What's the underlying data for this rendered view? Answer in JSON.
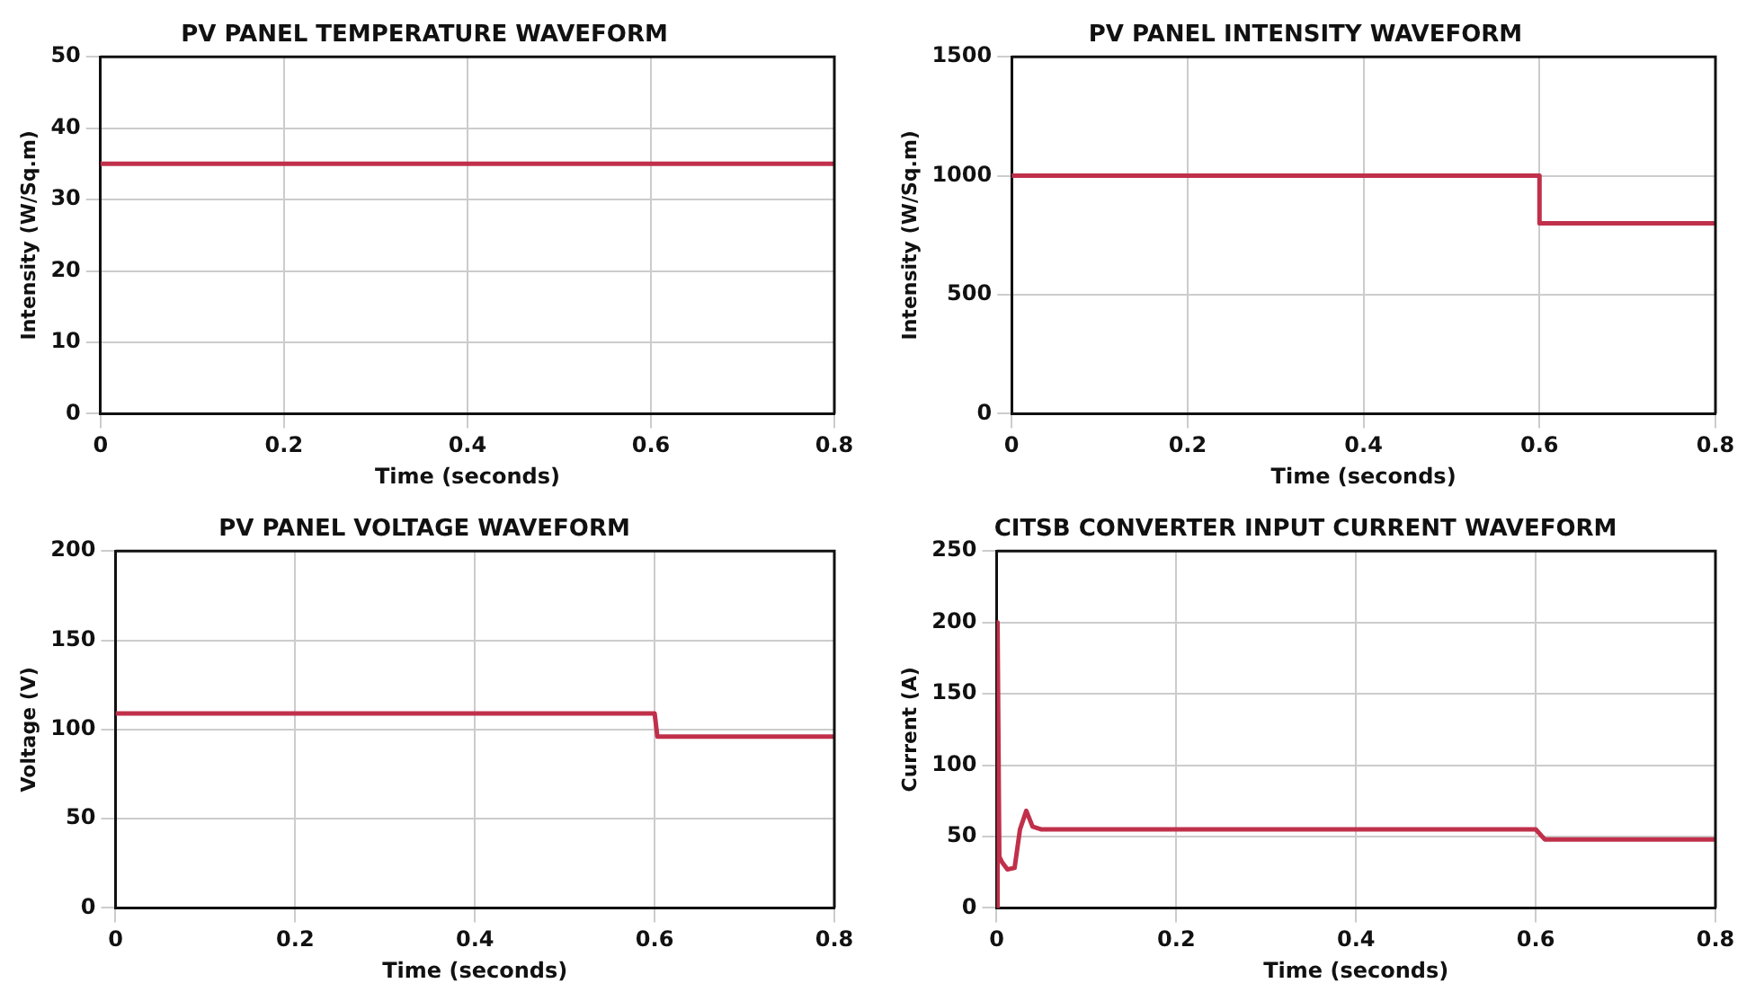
{
  "chart_data": [
    {
      "type": "line",
      "title": "PV PANEL TEMPERATURE WAVEFORM",
      "xlabel": "Time (seconds)",
      "ylabel": "Intensity (W/Sq.m)",
      "x": [
        0,
        0.8
      ],
      "values": [
        35,
        35
      ],
      "color": "#c0304a",
      "xlim": [
        0,
        0.8
      ],
      "xticks": [
        0,
        0.2,
        0.4,
        0.6,
        0.8
      ],
      "ylim": [
        0,
        50
      ],
      "yticks": [
        0,
        10,
        20,
        30,
        40,
        50
      ],
      "grid": true
    },
    {
      "type": "line",
      "title": "PV PANEL INTENSITY WAVEFORM",
      "xlabel": "Time (seconds)",
      "ylabel": "Intensity (W/Sq.m)",
      "x": [
        0,
        0.6,
        0.6,
        0.8
      ],
      "values": [
        1000,
        1000,
        800,
        800
      ],
      "color": "#c0304a",
      "xlim": [
        0,
        0.8
      ],
      "xticks": [
        0,
        0.2,
        0.4,
        0.6,
        0.8
      ],
      "ylim": [
        0,
        1500
      ],
      "yticks": [
        0,
        500,
        1000,
        1500
      ],
      "grid": true
    },
    {
      "type": "line",
      "title": "PV PANEL VOLTAGE WAVEFORM",
      "xlabel": "Time (seconds)",
      "ylabel": "Voltage (V)",
      "x": [
        0,
        0.6,
        0.603,
        0.8
      ],
      "values": [
        109,
        109,
        96,
        96
      ],
      "color": "#c0304a",
      "xlim": [
        0,
        0.8
      ],
      "xticks": [
        0,
        0.2,
        0.4,
        0.6,
        0.8
      ],
      "ylim": [
        0,
        200
      ],
      "yticks": [
        0,
        50,
        100,
        150,
        200
      ],
      "grid": true
    },
    {
      "type": "line",
      "title": "CITSB CONVERTER INPUT CURRENT WAVEFORM",
      "xlabel": "Time (seconds)",
      "ylabel": "Current (A)",
      "x": [
        0,
        0.001,
        0.003,
        0.006,
        0.012,
        0.02,
        0.026,
        0.033,
        0.04,
        0.05,
        0.6,
        0.61,
        0.8
      ],
      "values": [
        0,
        200,
        36,
        32,
        27,
        28,
        55,
        68,
        57,
        55,
        55,
        48,
        48
      ],
      "color": "#c0304a",
      "xlim": [
        0,
        0.8
      ],
      "xticks": [
        0,
        0.2,
        0.4,
        0.6,
        0.8
      ],
      "ylim": [
        0,
        250
      ],
      "yticks": [
        0,
        50,
        100,
        150,
        200,
        250
      ],
      "grid": true
    }
  ]
}
